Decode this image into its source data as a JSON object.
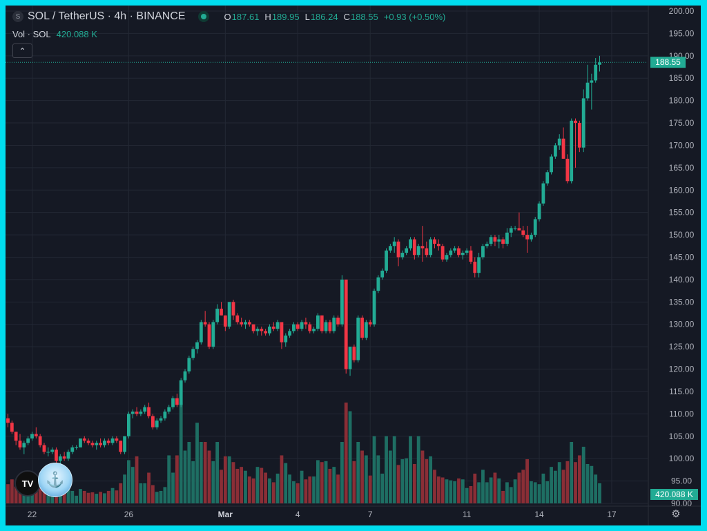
{
  "header": {
    "symbol_icon": "S",
    "title": "SOL / TetherUS · 4h · BINANCE",
    "ohlc": [
      {
        "key": "O",
        "value": "187.61"
      },
      {
        "key": "H",
        "value": "189.95"
      },
      {
        "key": "L",
        "value": "186.24"
      },
      {
        "key": "C",
        "value": "188.55"
      },
      {
        "key": "",
        "value": "+0.93 (+0.50%)"
      }
    ]
  },
  "volume_legend": {
    "label": "Vol · SOL",
    "value": "420.088 K"
  },
  "collapse_icon": "chevron-up-icon",
  "logo_text": "TV",
  "colors": {
    "up": "#22ab94",
    "down": "#f23645",
    "background": "#151924",
    "grid": "#232834",
    "text": "#b2b5be"
  },
  "chart_data": {
    "type": "candlestick",
    "timeframe": "4h",
    "ylim": [
      90,
      200
    ],
    "yticks": [
      "200.00",
      "195.00",
      "190.00",
      "185.00",
      "180.00",
      "175.00",
      "170.00",
      "165.00",
      "160.00",
      "155.00",
      "150.00",
      "145.00",
      "140.00",
      "135.00",
      "130.00",
      "125.00",
      "120.00",
      "115.00",
      "110.00",
      "105.00",
      "100.00",
      "95.00",
      "90.00"
    ],
    "xticks": [
      {
        "label": "22",
        "index": 6
      },
      {
        "label": "26",
        "index": 30
      },
      {
        "label": "Mar",
        "index": 54
      },
      {
        "label": "4",
        "index": 72
      },
      {
        "label": "7",
        "index": 90
      },
      {
        "label": "11",
        "index": 114
      },
      {
        "label": "14",
        "index": 132
      },
      {
        "label": "17",
        "index": 150
      }
    ],
    "last_price": "188.55",
    "last_volume": "420.088 K",
    "volume_max": 2100,
    "candles": [
      [
        109,
        110,
        107,
        108,
        400
      ],
      [
        108,
        108.5,
        105.5,
        106,
        500
      ],
      [
        106,
        106,
        103,
        104,
        350
      ],
      [
        104,
        105.5,
        102,
        102.5,
        380
      ],
      [
        102.5,
        104,
        101,
        103.5,
        300
      ],
      [
        103.5,
        105,
        103,
        104.5,
        260
      ],
      [
        104.5,
        106,
        104,
        105.5,
        240
      ],
      [
        105.5,
        107,
        104.5,
        105,
        280
      ],
      [
        105,
        105.5,
        102.5,
        103,
        320
      ],
      [
        103,
        103.5,
        101,
        101.5,
        300
      ],
      [
        101.5,
        102.5,
        100.5,
        101.5,
        260
      ],
      [
        101.5,
        102.5,
        101,
        102,
        220
      ],
      [
        102,
        102.5,
        99,
        99.5,
        360
      ],
      [
        99.5,
        101,
        98.5,
        100.5,
        300
      ],
      [
        100.5,
        101.5,
        99.5,
        100,
        240
      ],
      [
        100,
        102,
        99.5,
        101.5,
        280
      ],
      [
        101.5,
        103,
        101,
        102.5,
        260
      ],
      [
        102.5,
        103,
        102,
        102.5,
        160
      ],
      [
        102.5,
        104.5,
        102.5,
        104.5,
        300
      ],
      [
        104.5,
        105,
        103.5,
        104,
        260
      ],
      [
        104,
        104.5,
        103,
        103.5,
        220
      ],
      [
        103.5,
        104,
        102.5,
        103,
        230
      ],
      [
        103,
        104,
        102,
        103.5,
        200
      ],
      [
        103.5,
        104.5,
        102.5,
        103,
        240
      ],
      [
        103,
        104.5,
        102.5,
        104,
        210
      ],
      [
        104,
        104.5,
        103,
        103.5,
        260
      ],
      [
        103.5,
        105,
        103,
        104.5,
        320
      ],
      [
        104.5,
        105,
        103.5,
        104,
        270
      ],
      [
        104,
        104,
        101,
        101.5,
        420
      ],
      [
        101.5,
        105,
        101,
        105,
        600
      ],
      [
        105,
        110.5,
        104.5,
        110,
        900
      ],
      [
        110,
        111,
        109,
        110.5,
        760
      ],
      [
        110.5,
        111.5,
        109.5,
        110,
        980
      ],
      [
        110,
        111,
        109.5,
        110.5,
        420
      ],
      [
        110.5,
        112,
        110,
        111.5,
        420
      ],
      [
        111.5,
        112.5,
        109,
        109.5,
        640
      ],
      [
        109.5,
        110,
        106.5,
        107,
        380
      ],
      [
        107,
        109,
        106.5,
        108.5,
        240
      ],
      [
        108.5,
        109.5,
        108,
        109,
        260
      ],
      [
        109,
        111,
        108.5,
        110.5,
        340
      ],
      [
        110.5,
        112,
        110,
        111.5,
        1000
      ],
      [
        111.5,
        114,
        111,
        113.5,
        640
      ],
      [
        113.5,
        114.5,
        111.5,
        112,
        1000
      ],
      [
        112,
        118,
        111.5,
        117.5,
        2100
      ],
      [
        117.5,
        120,
        117,
        119.5,
        1100
      ],
      [
        119.5,
        123,
        119,
        122.5,
        1280
      ],
      [
        122.5,
        125,
        122,
        124.5,
        880
      ],
      [
        124.5,
        126.5,
        123.5,
        126,
        1680
      ],
      [
        126,
        131,
        125.5,
        130.5,
        1280
      ],
      [
        130.5,
        133,
        129.5,
        130,
        1280
      ],
      [
        130,
        130.5,
        124.5,
        125,
        1100
      ],
      [
        125,
        131,
        124.5,
        130.5,
        880
      ],
      [
        130.5,
        134.5,
        130,
        133.5,
        1280
      ],
      [
        133.5,
        135,
        132,
        132,
        700
      ],
      [
        132,
        132,
        128.5,
        129.5,
        980
      ],
      [
        129.5,
        135,
        129,
        135,
        980
      ],
      [
        135,
        135.5,
        131,
        132,
        860
      ],
      [
        132,
        132.5,
        130,
        130.5,
        720
      ],
      [
        130.5,
        131.5,
        129.5,
        130,
        760
      ],
      [
        130,
        131,
        129,
        130.5,
        680
      ],
      [
        130.5,
        131,
        129.5,
        130,
        560
      ],
      [
        130,
        130,
        128,
        128.5,
        520
      ],
      [
        128.5,
        129.5,
        127.5,
        129,
        760
      ],
      [
        129,
        129.5,
        127.5,
        128.5,
        740
      ],
      [
        128.5,
        129,
        127.5,
        128,
        640
      ],
      [
        128,
        130,
        127.5,
        129.5,
        520
      ],
      [
        129.5,
        130.5,
        128.5,
        129,
        440
      ],
      [
        129,
        131,
        128.5,
        130.5,
        620
      ],
      [
        130.5,
        130.5,
        124.5,
        126,
        1000
      ],
      [
        126,
        128,
        125,
        127.5,
        840
      ],
      [
        127.5,
        129,
        127,
        128.5,
        600
      ],
      [
        128.5,
        130.5,
        128,
        130,
        460
      ],
      [
        130,
        130.5,
        128.5,
        129,
        420
      ],
      [
        129,
        131,
        128.5,
        130.5,
        680
      ],
      [
        130.5,
        131.5,
        129,
        130,
        500
      ],
      [
        130,
        130.5,
        128,
        128.5,
        560
      ],
      [
        128.5,
        129.5,
        128,
        129,
        560
      ],
      [
        129,
        132.5,
        128.5,
        132,
        900
      ],
      [
        132,
        132,
        128,
        128.5,
        860
      ],
      [
        128.5,
        131,
        128,
        130.5,
        880
      ],
      [
        130.5,
        131,
        128,
        128.5,
        720
      ],
      [
        128.5,
        132,
        128,
        131.5,
        760
      ],
      [
        131.5,
        132,
        129.5,
        130,
        600
      ],
      [
        130,
        141,
        129.5,
        140,
        1280
      ],
      [
        140,
        140,
        119,
        120,
        2100
      ],
      [
        120,
        125,
        118.5,
        125,
        1920
      ],
      [
        125,
        125.5,
        121.5,
        122,
        880
      ],
      [
        122,
        132,
        121.5,
        131.5,
        1280
      ],
      [
        131.5,
        132,
        126.5,
        127,
        1100
      ],
      [
        127,
        131,
        126.5,
        130.5,
        1000
      ],
      [
        130.5,
        131,
        129.5,
        130,
        580
      ],
      [
        130,
        138,
        129.5,
        137.5,
        1400
      ],
      [
        137.5,
        141,
        137,
        140.5,
        1000
      ],
      [
        140.5,
        142.5,
        140,
        142,
        620
      ],
      [
        142,
        147,
        141.5,
        146.5,
        1400
      ],
      [
        146.5,
        148,
        146,
        147.5,
        1100
      ],
      [
        147.5,
        149.5,
        146,
        148.5,
        1400
      ],
      [
        148.5,
        149,
        143,
        145,
        800
      ],
      [
        145,
        146.5,
        144.5,
        146,
        920
      ],
      [
        146,
        147.5,
        145.5,
        147,
        940
      ],
      [
        147,
        149.5,
        146.5,
        149,
        1400
      ],
      [
        149,
        149.5,
        144.5,
        145.5,
        820
      ],
      [
        145.5,
        148,
        145,
        147.5,
        1400
      ],
      [
        147.5,
        152,
        144,
        147,
        1100
      ],
      [
        147,
        148.5,
        145,
        145.5,
        920
      ],
      [
        145.5,
        149.5,
        145,
        149,
        980
      ],
      [
        149,
        149.5,
        147,
        148,
        700
      ],
      [
        148,
        149,
        146.5,
        147.5,
        560
      ],
      [
        147.5,
        148,
        144,
        144.5,
        540
      ],
      [
        144.5,
        146,
        144,
        145.5,
        500
      ],
      [
        145.5,
        147,
        145,
        146.5,
        480
      ],
      [
        146.5,
        147.5,
        146,
        147,
        460
      ],
      [
        147,
        147.5,
        145,
        145.5,
        520
      ],
      [
        145.5,
        146.5,
        144.5,
        146,
        500
      ],
      [
        146,
        147,
        145.5,
        146.5,
        320
      ],
      [
        146.5,
        147.5,
        143.5,
        144,
        360
      ],
      [
        144,
        145,
        140.5,
        141.5,
        620
      ],
      [
        141.5,
        146,
        140.5,
        145,
        440
      ],
      [
        145,
        148,
        144.5,
        147.5,
        700
      ],
      [
        147.5,
        148.5,
        147,
        148,
        440
      ],
      [
        148,
        150,
        147.5,
        149.5,
        540
      ],
      [
        149.5,
        150,
        147.5,
        148.5,
        640
      ],
      [
        148.5,
        150,
        147,
        149,
        520
      ],
      [
        149,
        149.5,
        147,
        148,
        260
      ],
      [
        148,
        151.5,
        147.5,
        150.5,
        440
      ],
      [
        150.5,
        152,
        149.5,
        151.5,
        340
      ],
      [
        151.5,
        152,
        151,
        151.5,
        500
      ],
      [
        151.5,
        155,
        151,
        151,
        640
      ],
      [
        151,
        152,
        149.5,
        150,
        700
      ],
      [
        150,
        152,
        146,
        149,
        920
      ],
      [
        149,
        150.5,
        148.5,
        150,
        460
      ],
      [
        150,
        154,
        149.5,
        153.5,
        440
      ],
      [
        153.5,
        157.5,
        153,
        157,
        400
      ],
      [
        157,
        162,
        156.5,
        161.5,
        620
      ],
      [
        161.5,
        164.5,
        161,
        164,
        460
      ],
      [
        164,
        168,
        163.5,
        167.5,
        760
      ],
      [
        167.5,
        170.5,
        167,
        170,
        680
      ],
      [
        170,
        172.5,
        169,
        171.5,
        860
      ],
      [
        171.5,
        174,
        167,
        167,
        700
      ],
      [
        167,
        168,
        161.5,
        162,
        880
      ],
      [
        162,
        176,
        161.5,
        175.5,
        1280
      ],
      [
        175.5,
        176,
        165,
        175,
        860
      ],
      [
        175,
        175.5,
        168.5,
        169.5,
        1000
      ],
      [
        169.5,
        182.5,
        168.5,
        180.5,
        1180
      ],
      [
        180.5,
        188,
        180,
        184,
        820
      ],
      [
        184,
        186,
        178,
        184.5,
        780
      ],
      [
        184.5,
        189.5,
        184,
        188,
        600
      ],
      [
        188,
        190,
        186.5,
        188.5,
        420
      ]
    ]
  }
}
